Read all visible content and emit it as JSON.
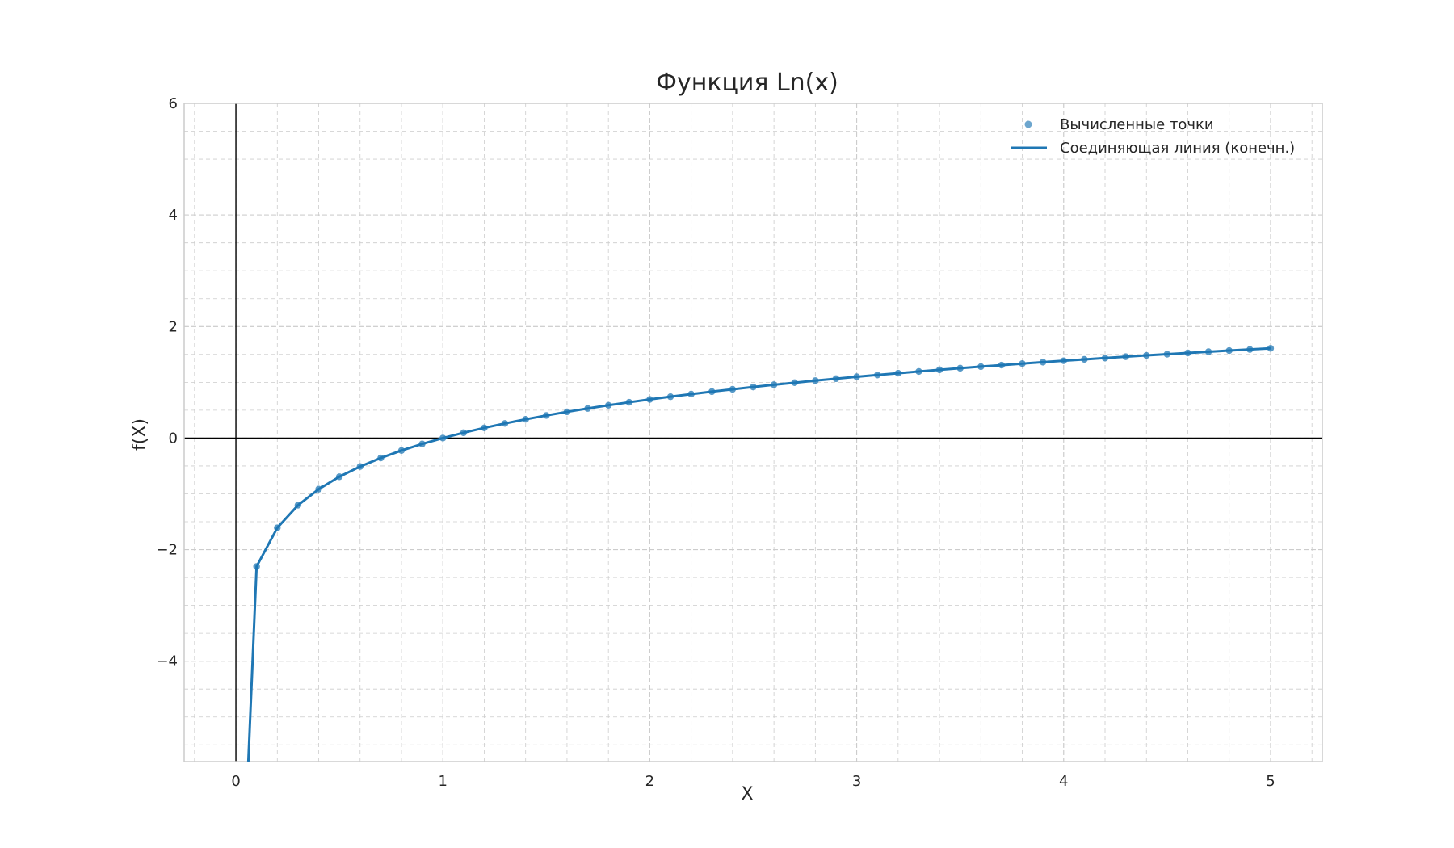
{
  "chart_data": {
    "type": "line",
    "title": "Функция Ln(x)",
    "xlabel": "X",
    "ylabel": "f(X)",
    "xlim": [
      -0.25,
      5.25
    ],
    "ylim": [
      -5.8,
      6
    ],
    "xticks": [
      0,
      1,
      2,
      3,
      4,
      5
    ],
    "yticks": [
      -4,
      -2,
      0,
      2,
      4,
      6
    ],
    "ytick_labels": [
      "−4",
      "−2",
      "0",
      "2",
      "4",
      "6"
    ],
    "xminor_step": 0.2,
    "yminor_step": 0.5,
    "grid": true,
    "legend_position": "top-right",
    "colors": {
      "line": "#1f77b4",
      "points": "#1f77b4",
      "grid": "#cccccc",
      "axes_lines": "#000000",
      "spine": "#cccccc"
    },
    "series": [
      {
        "name": "Вычисленные точки",
        "kind": "scatter",
        "x": [
          0.1,
          0.2,
          0.3,
          0.4,
          0.5,
          0.6,
          0.7,
          0.8,
          0.9,
          1.0,
          1.1,
          1.2,
          1.3,
          1.4,
          1.5,
          1.6,
          1.7,
          1.8,
          1.9,
          2.0,
          2.1,
          2.2,
          2.3,
          2.4,
          2.5,
          2.6,
          2.7,
          2.8,
          2.9,
          3.0,
          3.1,
          3.2,
          3.3,
          3.4,
          3.5,
          3.6,
          3.7,
          3.8,
          3.9,
          4.0,
          4.1,
          4.2,
          4.3,
          4.4,
          4.5,
          4.6,
          4.7,
          4.8,
          4.9,
          5.0
        ],
        "y": [
          -2.303,
          -1.609,
          -1.204,
          -0.916,
          -0.693,
          -0.511,
          -0.357,
          -0.223,
          -0.105,
          0.0,
          0.095,
          0.182,
          0.262,
          0.336,
          0.405,
          0.47,
          0.531,
          0.588,
          0.642,
          0.693,
          0.742,
          0.788,
          0.833,
          0.875,
          0.916,
          0.956,
          0.993,
          1.03,
          1.065,
          1.099,
          1.131,
          1.163,
          1.194,
          1.224,
          1.253,
          1.281,
          1.308,
          1.335,
          1.361,
          1.386,
          1.411,
          1.435,
          1.459,
          1.482,
          1.504,
          1.526,
          1.548,
          1.569,
          1.589,
          1.609
        ]
      },
      {
        "name": "Соединяющая линия (конечн.)",
        "kind": "line",
        "x": [
          0.06,
          0.1,
          0.2,
          0.3,
          0.4,
          0.5,
          0.6,
          0.7,
          0.8,
          0.9,
          1.0,
          1.1,
          1.2,
          1.3,
          1.4,
          1.5,
          1.6,
          1.7,
          1.8,
          1.9,
          2.0,
          2.1,
          2.2,
          2.3,
          2.4,
          2.5,
          2.6,
          2.7,
          2.8,
          2.9,
          3.0,
          3.1,
          3.2,
          3.3,
          3.4,
          3.5,
          3.6,
          3.7,
          3.8,
          3.9,
          4.0,
          4.1,
          4.2,
          4.3,
          4.4,
          4.5,
          4.6,
          4.7,
          4.8,
          4.9,
          5.0
        ],
        "y": [
          -5.8,
          -2.303,
          -1.609,
          -1.204,
          -0.916,
          -0.693,
          -0.511,
          -0.357,
          -0.223,
          -0.105,
          0.0,
          0.095,
          0.182,
          0.262,
          0.336,
          0.405,
          0.47,
          0.531,
          0.588,
          0.642,
          0.693,
          0.742,
          0.788,
          0.833,
          0.875,
          0.916,
          0.956,
          0.993,
          1.03,
          1.065,
          1.099,
          1.131,
          1.163,
          1.194,
          1.224,
          1.253,
          1.281,
          1.308,
          1.335,
          1.361,
          1.386,
          1.411,
          1.435,
          1.459,
          1.482,
          1.504,
          1.526,
          1.548,
          1.569,
          1.589,
          1.609
        ]
      }
    ]
  }
}
